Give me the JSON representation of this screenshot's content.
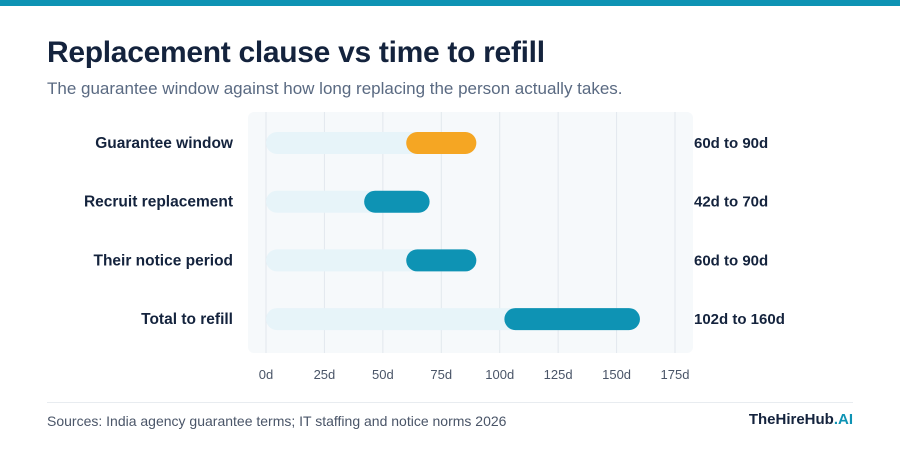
{
  "header": {
    "title": "Replacement clause vs time to refill",
    "subtitle": "The guarantee window against how long replacing the person actually takes."
  },
  "footer": {
    "source": "Sources: India agency guarantee terms; IT staffing and notice norms 2026",
    "brand_main": "TheHireHub",
    "brand_accent": ".AI"
  },
  "colors": {
    "highlight": "#f5a623",
    "bar": "#0e93b4",
    "track": "#e7f4f9",
    "plot_bg": "#f6f9fb",
    "grid": "#e2e8ee",
    "text": "#14233d",
    "tick": "#4a5568"
  },
  "chart_data": {
    "type": "bar",
    "orientation": "horizontal-range",
    "title": "Replacement clause vs time to refill",
    "subtitle": "The guarantee window against how long replacing the person actually takes.",
    "xlabel": "",
    "ylabel": "",
    "xlim": [
      0,
      175
    ],
    "xticks": [
      0,
      25,
      50,
      75,
      100,
      125,
      150,
      175
    ],
    "xtick_labels": [
      "0d",
      "25d",
      "50d",
      "75d",
      "100d",
      "125d",
      "150d",
      "175d"
    ],
    "grid": true,
    "categories": [
      "Guarantee window",
      "Recruit replacement",
      "Their notice period",
      "Total to refill"
    ],
    "ranges": [
      {
        "start": 60,
        "end": 90,
        "label": "60d to 90d",
        "highlight": true
      },
      {
        "start": 42,
        "end": 70,
        "label": "42d to 70d",
        "highlight": false
      },
      {
        "start": 60,
        "end": 90,
        "label": "60d to 90d",
        "highlight": false
      },
      {
        "start": 102,
        "end": 160,
        "label": "102d to 160d",
        "highlight": false
      }
    ]
  }
}
